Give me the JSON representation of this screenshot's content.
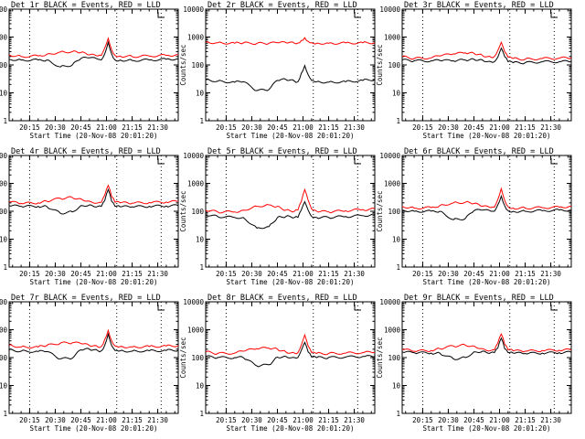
{
  "chart_data": [
    {
      "type": "line",
      "title": "Det 1r BLACK = Events, RED = LLD",
      "xlabel": "Start Time (20-Nov-08 20:01:20)",
      "ylabel": "Counts/sec",
      "yscale": "log",
      "ylim": [
        1,
        10000
      ],
      "xlim": [
        "20:03",
        "21:42"
      ],
      "xticks": [
        "20:15",
        "20:30",
        "20:45",
        "21:00",
        "21:15",
        "21:30"
      ],
      "yticks": [
        "1",
        "10",
        "100",
        "1000",
        "10000"
      ],
      "vlines": [
        "20:15",
        "21:06",
        "21:32"
      ],
      "x": [
        "20:03",
        "20:10",
        "20:20",
        "20:25",
        "20:33",
        "20:40",
        "20:45",
        "20:50",
        "20:55",
        "20:57",
        "20:59",
        "21:01",
        "21:03",
        "21:05",
        "21:08",
        "21:15",
        "21:25",
        "21:35",
        "21:42"
      ],
      "series": [
        {
          "name": "Events",
          "color": "#000000",
          "values": [
            160,
            150,
            150,
            150,
            85,
            100,
            170,
            180,
            160,
            150,
            250,
            650,
            250,
            150,
            150,
            145,
            150,
            160,
            165
          ]
        },
        {
          "name": "LLD",
          "color": "#ff0000",
          "values": [
            230,
            200,
            210,
            240,
            290,
            300,
            280,
            230,
            210,
            220,
            400,
            900,
            350,
            220,
            210,
            200,
            210,
            220,
            230
          ]
        }
      ]
    },
    {
      "type": "line",
      "title": "Det 2r BLACK = Events, RED = LLD",
      "xlabel": "Start Time (20-Nov-08 20:01:20)",
      "ylabel": "Counts/sec",
      "yscale": "log",
      "ylim": [
        1,
        10000
      ],
      "xlim": [
        "20:03",
        "21:42"
      ],
      "xticks": [
        "20:15",
        "20:30",
        "20:45",
        "21:00",
        "21:15",
        "21:30"
      ],
      "yticks": [
        "1",
        "10",
        "100",
        "1000",
        "10000"
      ],
      "vlines": [
        "20:15",
        "21:06",
        "21:32"
      ],
      "x": [
        "20:03",
        "20:10",
        "20:20",
        "20:25",
        "20:33",
        "20:40",
        "20:45",
        "20:50",
        "20:55",
        "20:57",
        "20:59",
        "21:01",
        "21:03",
        "21:05",
        "21:08",
        "21:15",
        "21:25",
        "21:35",
        "21:42"
      ],
      "series": [
        {
          "name": "Events",
          "color": "#000000",
          "values": [
            30,
            26,
            24,
            25,
            12,
            13,
            28,
            30,
            26,
            25,
            50,
            95,
            45,
            28,
            25,
            24,
            25,
            28,
            30
          ]
        },
        {
          "name": "LLD",
          "color": "#ff0000",
          "values": [
            650,
            620,
            600,
            610,
            590,
            600,
            620,
            630,
            600,
            610,
            750,
            950,
            700,
            620,
            600,
            600,
            610,
            620,
            630
          ]
        }
      ]
    },
    {
      "type": "line",
      "title": "Det 3r BLACK = Events, RED = LLD",
      "xlabel": "Start Time (20-Nov-08 20:01:20)",
      "ylabel": "Counts/sec",
      "yscale": "log",
      "ylim": [
        1,
        10000
      ],
      "xlim": [
        "20:03",
        "21:42"
      ],
      "xticks": [
        "20:15",
        "20:30",
        "20:45",
        "21:00",
        "21:15",
        "21:30"
      ],
      "yticks": [
        "1",
        "10",
        "100",
        "1000",
        "10000"
      ],
      "vlines": [
        "20:15",
        "21:06",
        "21:32"
      ],
      "x": [
        "20:03",
        "20:10",
        "20:20",
        "20:25",
        "20:33",
        "20:40",
        "20:45",
        "20:50",
        "20:55",
        "20:57",
        "20:59",
        "21:01",
        "21:03",
        "21:05",
        "21:08",
        "21:15",
        "21:25",
        "21:35",
        "21:42"
      ],
      "series": [
        {
          "name": "Events",
          "color": "#000000",
          "values": [
            150,
            140,
            140,
            145,
            140,
            150,
            160,
            150,
            130,
            130,
            190,
            400,
            200,
            130,
            120,
            120,
            130,
            130,
            135
          ]
        },
        {
          "name": "LLD",
          "color": "#ff0000",
          "values": [
            200,
            170,
            180,
            210,
            250,
            270,
            260,
            220,
            190,
            200,
            330,
            650,
            300,
            190,
            170,
            160,
            170,
            175,
            180
          ]
        }
      ]
    },
    {
      "type": "line",
      "title": "Det 4r BLACK = Events, RED = LLD",
      "xlabel": "Start Time (20-Nov-08 20:01:20)",
      "ylabel": "Counts/sec",
      "yscale": "log",
      "ylim": [
        1,
        10000
      ],
      "xlim": [
        "20:03",
        "21:42"
      ],
      "xticks": [
        "20:15",
        "20:30",
        "20:45",
        "21:00",
        "21:15",
        "21:30"
      ],
      "yticks": [
        "1",
        "10",
        "100",
        "1000",
        "10000"
      ],
      "vlines": [
        "20:15",
        "21:06",
        "21:32"
      ],
      "x": [
        "20:03",
        "20:10",
        "20:20",
        "20:25",
        "20:33",
        "20:40",
        "20:45",
        "20:50",
        "20:55",
        "20:57",
        "20:59",
        "21:01",
        "21:03",
        "21:05",
        "21:08",
        "21:15",
        "21:25",
        "21:35",
        "21:42"
      ],
      "series": [
        {
          "name": "Events",
          "color": "#000000",
          "values": [
            160,
            150,
            150,
            150,
            85,
            95,
            160,
            170,
            150,
            150,
            240,
            600,
            230,
            150,
            145,
            145,
            150,
            155,
            160
          ]
        },
        {
          "name": "LLD",
          "color": "#ff0000",
          "values": [
            220,
            190,
            200,
            230,
            290,
            310,
            280,
            230,
            200,
            210,
            380,
            850,
            340,
            210,
            200,
            195,
            205,
            215,
            225
          ]
        }
      ]
    },
    {
      "type": "line",
      "title": "Det 5r BLACK = Events, RED = LLD",
      "xlabel": "Start Time (20-Nov-08 20:01:20)",
      "ylabel": "Counts/sec",
      "yscale": "log",
      "ylim": [
        1,
        10000
      ],
      "xlim": [
        "20:03",
        "21:42"
      ],
      "xticks": [
        "20:15",
        "20:30",
        "20:45",
        "21:00",
        "21:15",
        "21:30"
      ],
      "yticks": [
        "1",
        "10",
        "100",
        "1000",
        "10000"
      ],
      "vlines": [
        "20:15",
        "21:06",
        "21:32"
      ],
      "x": [
        "20:03",
        "20:10",
        "20:20",
        "20:25",
        "20:33",
        "20:40",
        "20:45",
        "20:50",
        "20:55",
        "20:57",
        "20:59",
        "21:01",
        "21:03",
        "21:05",
        "21:08",
        "21:15",
        "21:25",
        "21:35",
        "21:42"
      ],
      "series": [
        {
          "name": "Events",
          "color": "#000000",
          "values": [
            75,
            65,
            60,
            60,
            25,
            28,
            60,
            65,
            60,
            60,
            110,
            220,
            110,
            65,
            60,
            60,
            65,
            70,
            75
          ]
        },
        {
          "name": "LLD",
          "color": "#ff0000",
          "values": [
            110,
            95,
            95,
            110,
            150,
            170,
            150,
            110,
            100,
            110,
            220,
            600,
            250,
            120,
            100,
            95,
            105,
            115,
            120
          ]
        }
      ]
    },
    {
      "type": "line",
      "title": "Det 6r BLACK = Events, RED = LLD",
      "xlabel": "Start Time (20-Nov-08 20:01:20)",
      "ylabel": "Counts/sec",
      "yscale": "log",
      "ylim": [
        1,
        10000
      ],
      "xlim": [
        "20:03",
        "21:42"
      ],
      "xticks": [
        "20:15",
        "20:30",
        "20:45",
        "21:00",
        "21:15",
        "21:30"
      ],
      "yticks": [
        "1",
        "10",
        "100",
        "1000",
        "10000"
      ],
      "vlines": [
        "20:15",
        "21:06",
        "21:32"
      ],
      "x": [
        "20:03",
        "20:10",
        "20:20",
        "20:25",
        "20:33",
        "20:40",
        "20:45",
        "20:50",
        "20:55",
        "20:57",
        "20:59",
        "21:01",
        "21:03",
        "21:05",
        "21:08",
        "21:15",
        "21:25",
        "21:35",
        "21:42"
      ],
      "series": [
        {
          "name": "Events",
          "color": "#000000",
          "values": [
            110,
            100,
            100,
            100,
            50,
            55,
            105,
            110,
            100,
            100,
            170,
            350,
            160,
            105,
            100,
            100,
            105,
            110,
            110
          ]
        },
        {
          "name": "LLD",
          "color": "#ff0000",
          "values": [
            150,
            130,
            135,
            160,
            200,
            210,
            190,
            150,
            135,
            140,
            260,
            650,
            250,
            145,
            130,
            130,
            135,
            140,
            150
          ]
        }
      ]
    },
    {
      "type": "line",
      "title": "Det 7r BLACK = Events, RED = LLD",
      "xlabel": "Start Time (20-Nov-08 20:01:20)",
      "ylabel": "Counts/sec",
      "yscale": "log",
      "ylim": [
        1,
        10000
      ],
      "xlim": [
        "20:03",
        "21:42"
      ],
      "xticks": [
        "20:15",
        "20:30",
        "20:45",
        "21:00",
        "21:15",
        "21:30"
      ],
      "yticks": [
        "1",
        "10",
        "100",
        "1000",
        "10000"
      ],
      "vlines": [
        "20:15",
        "21:06",
        "21:32"
      ],
      "x": [
        "20:03",
        "20:10",
        "20:20",
        "20:25",
        "20:33",
        "20:40",
        "20:45",
        "20:50",
        "20:55",
        "20:57",
        "20:59",
        "21:01",
        "21:03",
        "21:05",
        "21:08",
        "21:15",
        "21:25",
        "21:35",
        "21:42"
      ],
      "series": [
        {
          "name": "Events",
          "color": "#000000",
          "values": [
            190,
            170,
            165,
            165,
            90,
            95,
            190,
            200,
            175,
            175,
            280,
            700,
            270,
            180,
            175,
            170,
            175,
            180,
            185
          ]
        },
        {
          "name": "LLD",
          "color": "#ff0000",
          "values": [
            280,
            240,
            240,
            270,
            330,
            340,
            320,
            270,
            240,
            250,
            450,
            950,
            400,
            260,
            250,
            240,
            250,
            260,
            270
          ]
        }
      ]
    },
    {
      "type": "line",
      "title": "Det 8r BLACK = Events, RED = LLD",
      "xlabel": "Start Time (20-Nov-08 20:01:20)",
      "ylabel": "Counts/sec",
      "yscale": "log",
      "ylim": [
        1,
        10000
      ],
      "xlim": [
        "20:03",
        "21:42"
      ],
      "xticks": [
        "20:15",
        "20:30",
        "20:45",
        "21:00",
        "21:15",
        "21:30"
      ],
      "yticks": [
        "1",
        "10",
        "100",
        "1000",
        "10000"
      ],
      "vlines": [
        "20:15",
        "21:06",
        "21:32"
      ],
      "x": [
        "20:03",
        "20:10",
        "20:20",
        "20:25",
        "20:33",
        "20:40",
        "20:45",
        "20:50",
        "20:55",
        "20:57",
        "20:59",
        "21:01",
        "21:03",
        "21:05",
        "21:08",
        "21:15",
        "21:25",
        "21:35",
        "21:42"
      ],
      "series": [
        {
          "name": "Events",
          "color": "#000000",
          "values": [
            110,
            100,
            100,
            100,
            50,
            55,
            105,
            110,
            100,
            100,
            180,
            350,
            160,
            105,
            100,
            100,
            105,
            110,
            110
          ]
        },
        {
          "name": "LLD",
          "color": "#ff0000",
          "values": [
            160,
            140,
            145,
            170,
            210,
            220,
            200,
            160,
            145,
            150,
            280,
            650,
            260,
            150,
            140,
            140,
            145,
            150,
            160
          ]
        }
      ]
    },
    {
      "type": "line",
      "title": "Det 9r BLACK = Events, RED = LLD",
      "xlabel": "Start Time (20-Nov-08 20:01:20)",
      "ylabel": "Counts/sec",
      "yscale": "log",
      "ylim": [
        1,
        10000
      ],
      "xlim": [
        "20:03",
        "21:42"
      ],
      "xticks": [
        "20:15",
        "20:30",
        "20:45",
        "21:00",
        "21:15",
        "21:30"
      ],
      "yticks": [
        "1",
        "10",
        "100",
        "1000",
        "10000"
      ],
      "vlines": [
        "20:15",
        "21:06",
        "21:32"
      ],
      "x": [
        "20:03",
        "20:10",
        "20:20",
        "20:25",
        "20:33",
        "20:40",
        "20:45",
        "20:50",
        "20:55",
        "20:57",
        "20:59",
        "21:01",
        "21:03",
        "21:05",
        "21:08",
        "21:15",
        "21:25",
        "21:35",
        "21:42"
      ],
      "series": [
        {
          "name": "Events",
          "color": "#000000",
          "values": [
            160,
            150,
            145,
            145,
            90,
            100,
            160,
            170,
            150,
            150,
            220,
            500,
            210,
            150,
            145,
            140,
            145,
            150,
            155
          ]
        },
        {
          "name": "LLD",
          "color": "#ff0000",
          "values": [
            200,
            170,
            180,
            210,
            260,
            280,
            260,
            210,
            180,
            190,
            330,
            700,
            300,
            190,
            175,
            170,
            180,
            185,
            190
          ]
        }
      ]
    }
  ]
}
